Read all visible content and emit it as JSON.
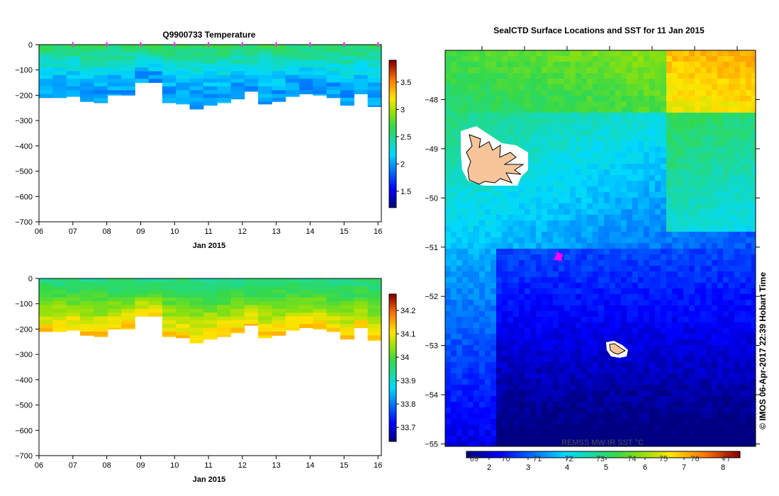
{
  "chart_data": [
    {
      "type": "heatmap",
      "title": "Q9900733  Temperature",
      "xlabel": "Jan 2015",
      "ylabel": "",
      "xticks": [
        "06",
        "07",
        "08",
        "09",
        "10",
        "11",
        "12",
        "13",
        "14",
        "15",
        "16"
      ],
      "xlim": [
        6,
        16.1
      ],
      "yticks": [
        0,
        -100,
        -200,
        -300,
        -400,
        -500,
        -600,
        -700
      ],
      "ylim": [
        -700,
        0
      ],
      "profile_markers_day": [
        7,
        8,
        9,
        10,
        11,
        12,
        13,
        14,
        15,
        16
      ],
      "profile_max_depth": [
        210,
        210,
        205,
        225,
        230,
        200,
        200,
        150,
        150,
        230,
        235,
        255,
        240,
        230,
        215,
        185,
        235,
        225,
        205,
        195,
        200,
        210,
        240,
        195,
        245
      ],
      "colorbar": {
        "ticks": [
          3.5,
          3,
          2.5,
          2,
          1.5
        ],
        "range": [
          1.2,
          3.9
        ]
      },
      "value_summary": {
        "surface": 2.6,
        "deep": 2.0
      }
    },
    {
      "type": "heatmap",
      "title": "",
      "xlabel": "Jan 2015",
      "ylabel": "",
      "xticks": [
        "06",
        "07",
        "08",
        "09",
        "10",
        "11",
        "12",
        "13",
        "14",
        "15",
        "16"
      ],
      "xlim": [
        6,
        16.1
      ],
      "yticks": [
        0,
        -100,
        -200,
        -300,
        -400,
        -500,
        -600,
        -700
      ],
      "ylim": [
        -700,
        0
      ],
      "colorbar": {
        "ticks": [
          34.2,
          34.1,
          34,
          33.9,
          33.8,
          33.7
        ],
        "range": [
          33.64,
          34.27
        ]
      },
      "value_summary": {
        "surface": 33.95,
        "deep": 34.15
      }
    },
    {
      "type": "heatmap",
      "title": "SealCTD Surface Locations and SST for 11 Jan 2015",
      "xlabel": "",
      "ylabel": "",
      "yticks": [
        -48,
        -49,
        -50,
        -51,
        -52,
        -53,
        -54,
        -55
      ],
      "ylim": [
        -55.05,
        -47.0
      ],
      "colorbar": {
        "label": "REMSS MW-IR SST °C",
        "upper_ticks": [
          "69",
          "70",
          "71",
          "72",
          "73",
          "74",
          "75",
          "76",
          "77"
        ],
        "lower_ticks": [
          "2",
          "3",
          "4",
          "5",
          "6",
          "7",
          "8"
        ]
      },
      "seal_surface_location": {
        "lat": -51.2
      },
      "footer_text": "© IMOS 06-Apr-2017 22:39 Hobart Time"
    }
  ]
}
